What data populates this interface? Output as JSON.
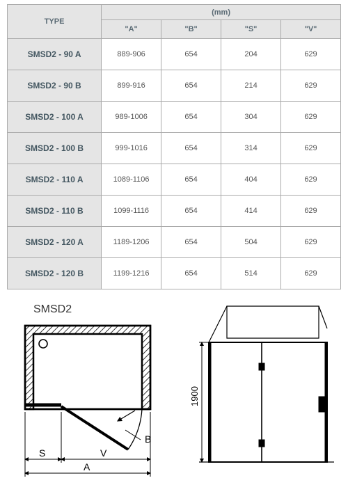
{
  "table": {
    "header": {
      "type": "TYPE",
      "group": "(mm)",
      "cols": [
        "\"A\"",
        "\"B\"",
        "\"S\"",
        "\"V\""
      ]
    },
    "rows": [
      {
        "type": "SMSD2 - 90 A",
        "a": "889-906",
        "b": "654",
        "s": "204",
        "v": "629"
      },
      {
        "type": "SMSD2 - 90 B",
        "a": "899-916",
        "b": "654",
        "s": "214",
        "v": "629"
      },
      {
        "type": "SMSD2 - 100 A",
        "a": "989-1006",
        "b": "654",
        "s": "304",
        "v": "629"
      },
      {
        "type": "SMSD2 - 100 B",
        "a": "999-1016",
        "b": "654",
        "s": "314",
        "v": "629"
      },
      {
        "type": "SMSD2 - 110 A",
        "a": "1089-1106",
        "b": "654",
        "s": "404",
        "v": "629"
      },
      {
        "type": "SMSD2 - 110 B",
        "a": "1099-1116",
        "b": "654",
        "s": "414",
        "v": "629"
      },
      {
        "type": "SMSD2 - 120 A",
        "a": "1189-1206",
        "b": "654",
        "s": "504",
        "v": "629"
      },
      {
        "type": "SMSD2 - 120 B",
        "a": "1199-1216",
        "b": "654",
        "s": "514",
        "v": "629"
      }
    ],
    "colors": {
      "header_bg": "#e5e5e5",
      "border": "#aaaaaa",
      "text": "#555555",
      "type_text": "#445761"
    }
  },
  "diagrams": {
    "plan": {
      "title": "SMSD2",
      "labels": {
        "a": "A",
        "b": "B",
        "s": "S",
        "v": "V"
      },
      "stroke": "#000000",
      "hatch_fill": "#000000"
    },
    "elevation": {
      "height_label": "1900",
      "stroke": "#000000"
    }
  }
}
